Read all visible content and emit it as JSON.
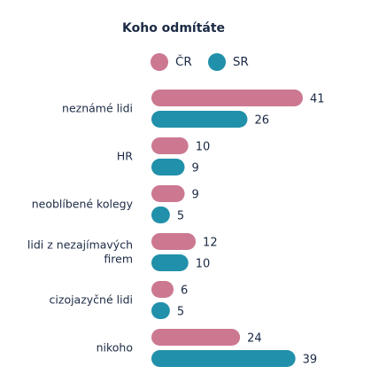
{
  "chart_data": {
    "type": "bar",
    "orientation": "horizontal",
    "title": "Koho odmítáte",
    "categories": [
      [
        "neznámé lidi"
      ],
      [
        "HR"
      ],
      [
        "neoblíbené kolegy"
      ],
      [
        "lidi z nezajímavých",
        "firem"
      ],
      [
        "cizojazyčné lidi"
      ],
      [
        "nikoho"
      ]
    ],
    "series": [
      {
        "name": "ČR",
        "color": "#cc7891",
        "values": [
          41,
          10,
          9,
          12,
          6,
          24
        ]
      },
      {
        "name": "SR",
        "color": "#2190aa",
        "values": [
          26,
          9,
          5,
          10,
          5,
          39
        ]
      }
    ],
    "xlim": [
      0,
      41
    ],
    "legend_position": "top",
    "grid": false
  }
}
